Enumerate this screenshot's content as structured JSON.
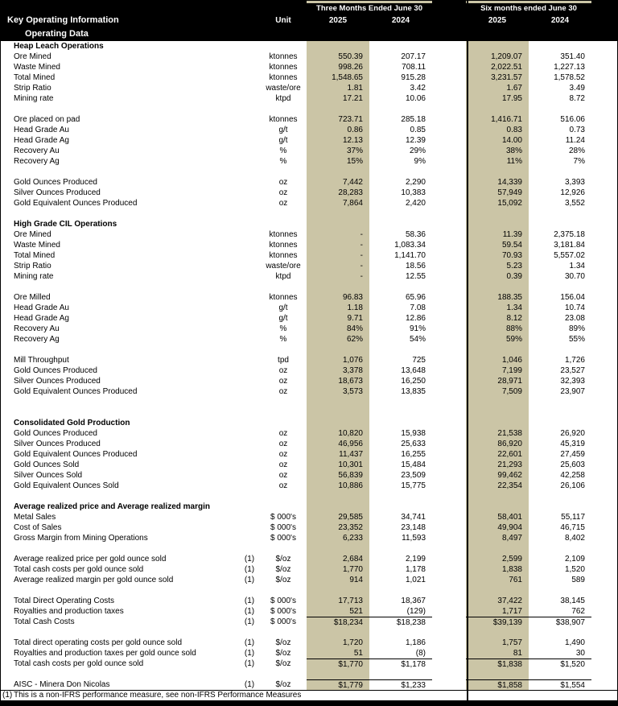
{
  "header": {
    "title": "Key Operating Information",
    "subtitle": "Operating Data",
    "unit_label": "Unit",
    "groups": [
      {
        "label": "Three Months Ended June 30",
        "years": [
          "2025",
          "2024"
        ]
      },
      {
        "label": "Six months ended June 30",
        "years": [
          "2025",
          "2024"
        ]
      }
    ]
  },
  "colors": {
    "highlight_column": "#cbc5a6",
    "header_background": "#000000",
    "header_text": "#ffffff",
    "body_text": "#000000"
  },
  "rows": [
    {
      "t": "s",
      "label": "Heap Leach Operations"
    },
    {
      "t": "d",
      "label": "Ore Mined",
      "unit": "ktonnes",
      "v": [
        "550.39",
        "207.17",
        "1,209.07",
        "351.40"
      ]
    },
    {
      "t": "d",
      "label": "Waste Mined",
      "unit": "ktonnes",
      "v": [
        "998.26",
        "708.11",
        "2,022.51",
        "1,227.13"
      ]
    },
    {
      "t": "d",
      "label": "Total Mined",
      "unit": "ktonnes",
      "v": [
        "1,548.65",
        "915.28",
        "3,231.57",
        "1,578.52"
      ]
    },
    {
      "t": "d",
      "label": "Strip Ratio",
      "unit": "waste/ore",
      "v": [
        "1.81",
        "3.42",
        "1.67",
        "3.49"
      ]
    },
    {
      "t": "d",
      "label": "Mining rate",
      "unit": "ktpd",
      "v": [
        "17.21",
        "10.06",
        "17.95",
        "8.72"
      ]
    },
    {
      "t": "b"
    },
    {
      "t": "d",
      "label": "Ore placed on pad",
      "unit": "ktonnes",
      "v": [
        "723.71",
        "285.18",
        "1,416.71",
        "516.06"
      ]
    },
    {
      "t": "d",
      "label": "Head Grade Au",
      "unit": "g/t",
      "v": [
        "0.86",
        "0.85",
        "0.83",
        "0.73"
      ]
    },
    {
      "t": "d",
      "label": "Head Grade Ag",
      "unit": "g/t",
      "v": [
        "12.13",
        "12.39",
        "14.00",
        "11.24"
      ]
    },
    {
      "t": "d",
      "label": "Recovery Au",
      "unit": "%",
      "v": [
        "37%",
        "29%",
        "38%",
        "28%"
      ]
    },
    {
      "t": "d",
      "label": "Recovery Ag",
      "unit": "%",
      "v": [
        "15%",
        "9%",
        "11%",
        "7%"
      ]
    },
    {
      "t": "b"
    },
    {
      "t": "d",
      "label": "Gold Ounces Produced",
      "unit": "oz",
      "v": [
        "7,442",
        "2,290",
        "14,339",
        "3,393"
      ]
    },
    {
      "t": "d",
      "label": "Silver Ounces Produced",
      "unit": "oz",
      "v": [
        "28,283",
        "10,383",
        "57,949",
        "12,926"
      ]
    },
    {
      "t": "d",
      "label": "Gold Equivalent Ounces Produced",
      "unit": "oz",
      "v": [
        "7,864",
        "2,420",
        "15,092",
        "3,552"
      ]
    },
    {
      "t": "b"
    },
    {
      "t": "s",
      "label": "High Grade CIL Operations"
    },
    {
      "t": "d",
      "label": "Ore Mined",
      "unit": "ktonnes",
      "v": [
        "-",
        "58.36",
        "11.39",
        "2,375.18"
      ]
    },
    {
      "t": "d",
      "label": "Waste Mined",
      "unit": "ktonnes",
      "v": [
        "-",
        "1,083.34",
        "59.54",
        "3,181.84"
      ]
    },
    {
      "t": "d",
      "label": "Total Mined",
      "unit": "ktonnes",
      "v": [
        "-",
        "1,141.70",
        "70.93",
        "5,557.02"
      ]
    },
    {
      "t": "d",
      "label": "Strip Ratio",
      "unit": "waste/ore",
      "v": [
        "-",
        "18.56",
        "5.23",
        "1.34"
      ]
    },
    {
      "t": "d",
      "label": "Mining rate",
      "unit": "ktpd",
      "v": [
        "-",
        "12.55",
        "0.39",
        "30.70"
      ]
    },
    {
      "t": "b"
    },
    {
      "t": "d",
      "label": "Ore Milled",
      "unit": "ktonnes",
      "v": [
        "96.83",
        "65.96",
        "188.35",
        "156.04"
      ]
    },
    {
      "t": "d",
      "label": "Head Grade Au",
      "unit": "g/t",
      "v": [
        "1.18",
        "7.08",
        "1.34",
        "10.74"
      ]
    },
    {
      "t": "d",
      "label": "Head Grade Ag",
      "unit": "g/t",
      "v": [
        "9.71",
        "12.86",
        "8.12",
        "23.08"
      ]
    },
    {
      "t": "d",
      "label": "Recovery Au",
      "unit": "%",
      "v": [
        "84%",
        "91%",
        "88%",
        "89%"
      ]
    },
    {
      "t": "d",
      "label": "Recovery Ag",
      "unit": "%",
      "v": [
        "62%",
        "54%",
        "59%",
        "55%"
      ]
    },
    {
      "t": "b"
    },
    {
      "t": "d",
      "label": "Mill Throughput",
      "unit": "tpd",
      "v": [
        "1,076",
        "725",
        "1,046",
        "1,726"
      ]
    },
    {
      "t": "d",
      "label": "Gold Ounces Produced",
      "unit": "oz",
      "v": [
        "3,378",
        "13,648",
        "7,199",
        "23,527"
      ]
    },
    {
      "t": "d",
      "label": "Silver Ounces Produced",
      "unit": "oz",
      "v": [
        "18,673",
        "16,250",
        "28,971",
        "32,393"
      ]
    },
    {
      "t": "d",
      "label": "Gold Equivalent Ounces Produced",
      "unit": "oz",
      "v": [
        "3,573",
        "13,835",
        "7,509",
        "23,907"
      ]
    },
    {
      "t": "b"
    },
    {
      "t": "b"
    },
    {
      "t": "s",
      "label": "Consolidated Gold Production"
    },
    {
      "t": "d",
      "label": "Gold Ounces Produced",
      "unit": "oz",
      "v": [
        "10,820",
        "15,938",
        "21,538",
        "26,920"
      ]
    },
    {
      "t": "d",
      "label": "Silver Ounces Produced",
      "unit": "oz",
      "v": [
        "46,956",
        "25,633",
        "86,920",
        "45,319"
      ]
    },
    {
      "t": "d",
      "label": "Gold Equivalent Ounces Produced",
      "unit": "oz",
      "v": [
        "11,437",
        "16,255",
        "22,601",
        "27,459"
      ]
    },
    {
      "t": "d",
      "label": "Gold Ounces Sold",
      "unit": "oz",
      "v": [
        "10,301",
        "15,484",
        "21,293",
        "25,603"
      ]
    },
    {
      "t": "d",
      "label": "Silver Ounces Sold",
      "unit": "oz",
      "v": [
        "56,839",
        "23,509",
        "99,462",
        "42,258"
      ]
    },
    {
      "t": "d",
      "label": "Gold Equivalent Ounces Sold",
      "unit": "oz",
      "v": [
        "10,886",
        "15,775",
        "22,354",
        "26,106"
      ]
    },
    {
      "t": "b"
    },
    {
      "t": "s",
      "label": "Average realized price and Average realized margin"
    },
    {
      "t": "d",
      "label": "Metal Sales",
      "unit": "$ 000's",
      "v": [
        "29,585",
        "34,741",
        "58,401",
        "55,117"
      ]
    },
    {
      "t": "d",
      "label": "Cost of Sales",
      "unit": "$ 000's",
      "v": [
        "23,352",
        "23,148",
        "49,904",
        "46,715"
      ]
    },
    {
      "t": "d",
      "label": "Gross Margin from Mining Operations",
      "unit": "$ 000's",
      "v": [
        "6,233",
        "11,593",
        "8,497",
        "8,402"
      ]
    },
    {
      "t": "b"
    },
    {
      "t": "d",
      "label": "Average realized price per gold ounce sold",
      "note": "(1)",
      "unit": "$/oz",
      "v": [
        "2,684",
        "2,199",
        "2,599",
        "2,109"
      ]
    },
    {
      "t": "d",
      "label": "Total cash costs per gold ounce sold",
      "note": "(1)",
      "unit": "$/oz",
      "v": [
        "1,770",
        "1,178",
        "1,838",
        "1,520"
      ]
    },
    {
      "t": "d",
      "label": "Average realized margin per gold ounce sold",
      "note": "(1)",
      "unit": "$/oz",
      "v": [
        "914",
        "1,021",
        "761",
        "589"
      ]
    },
    {
      "t": "b"
    },
    {
      "t": "d",
      "label": "Total Direct Operating Costs",
      "note": "(1)",
      "unit": "$ 000's",
      "v": [
        "17,713",
        "18,367",
        "37,422",
        "38,145"
      ]
    },
    {
      "t": "d",
      "label": "Royalties and production taxes",
      "note": "(1)",
      "unit": "$ 000's",
      "v": [
        "521",
        "(129)",
        "1,717",
        "762"
      ]
    },
    {
      "t": "d",
      "label": "Total Cash Costs",
      "note": "(1)",
      "unit": "$ 000's",
      "rule": true,
      "v": [
        "$18,234",
        "$18,238",
        "$39,139",
        "$38,907"
      ]
    },
    {
      "t": "b"
    },
    {
      "t": "d",
      "label": "Total direct operating costs per gold ounce sold",
      "note": "(1)",
      "unit": "$/oz",
      "v": [
        "1,720",
        "1,186",
        "1,757",
        "1,490"
      ]
    },
    {
      "t": "d",
      "label": "Royalties and production taxes per gold ounce sold",
      "note": "(1)",
      "unit": "$/oz",
      "v": [
        "51",
        "(8)",
        "81",
        "30"
      ]
    },
    {
      "t": "d",
      "label": "Total cash costs per gold ounce sold",
      "note": "(1)",
      "unit": "$/oz",
      "rule": true,
      "v": [
        "$1,770",
        "$1,178",
        "$1,838",
        "$1,520"
      ]
    },
    {
      "t": "b"
    },
    {
      "t": "d",
      "label": "AISC - Minera Don Nicolas",
      "note": "(1)",
      "unit": "$/oz",
      "rule": true,
      "v": [
        "$1,779",
        "$1,233",
        "$1,858",
        "$1,554"
      ]
    }
  ],
  "footnote": {
    "marker": "(1)",
    "text": "This is a non-IFRS performance measure, see non-IFRS Performance Measures"
  }
}
